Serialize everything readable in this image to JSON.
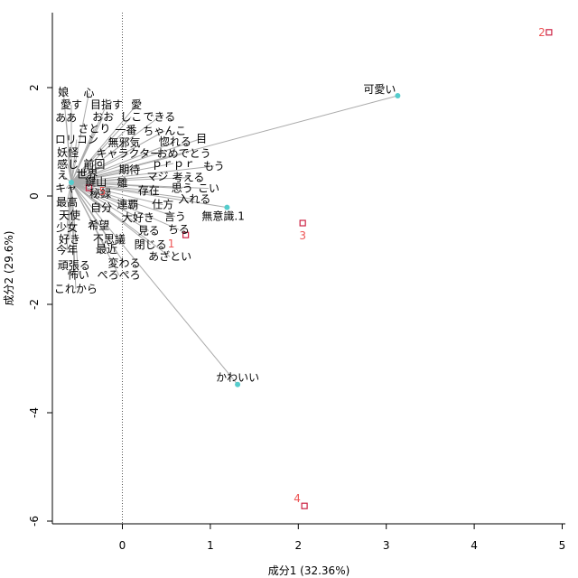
{
  "chart_data": {
    "type": "scatter",
    "xlabel": "成分1 (32.36%)",
    "ylabel": "成分2 (29.6%)",
    "xlim": [
      -0.8,
      5.0
    ],
    "ylim": [
      -6.1,
      3.2
    ],
    "xticks": [
      "0",
      "1",
      "2",
      "3",
      "4",
      "5"
    ],
    "yticks": [
      "2",
      "0",
      "-2",
      "-4",
      "-6"
    ],
    "colors": {
      "words": "#55CCCC",
      "docs": "#CC2244",
      "doc_label": "#EE5555",
      "lines": "#AAAAAA",
      "refline": "#555555"
    },
    "docs": [
      {
        "label": "1",
        "x": 0.72,
        "y": -0.72
      },
      {
        "label": "2",
        "x": 4.85,
        "y": 3.02
      },
      {
        "label": "3",
        "x": 2.05,
        "y": -0.5
      },
      {
        "label": "4",
        "x": 2.07,
        "y": -5.72
      },
      {
        "label": "5",
        "x": -0.38,
        "y": 0.15
      }
    ],
    "highlight_words": [
      {
        "label": "可愛い",
        "x": 3.13,
        "y": 1.85
      },
      {
        "label": "かわいい",
        "x": 1.31,
        "y": -3.48
      },
      {
        "label": "無意識.1",
        "x": 1.19,
        "y": -0.21
      }
    ],
    "words": [
      {
        "label": "娘",
        "x": -0.67,
        "y": 1.92
      },
      {
        "label": "心",
        "x": -0.38,
        "y": 1.9
      },
      {
        "label": "愛す",
        "x": -0.58,
        "y": 1.68
      },
      {
        "label": "目指す",
        "x": -0.18,
        "y": 1.68
      },
      {
        "label": "愛",
        "x": 0.16,
        "y": 1.68
      },
      {
        "label": "ああ",
        "x": -0.64,
        "y": 1.44
      },
      {
        "label": "おお",
        "x": -0.22,
        "y": 1.46
      },
      {
        "label": "しこ",
        "x": 0.1,
        "y": 1.46
      },
      {
        "label": "できる",
        "x": 0.42,
        "y": 1.46
      },
      {
        "label": "さとり",
        "x": -0.32,
        "y": 1.24
      },
      {
        "label": "一番",
        "x": 0.04,
        "y": 1.22
      },
      {
        "label": "ちゃんこ",
        "x": 0.48,
        "y": 1.2
      },
      {
        "label": "ロリコン",
        "x": -0.52,
        "y": 1.04
      },
      {
        "label": "無邪気",
        "x": 0.02,
        "y": 0.98
      },
      {
        "label": "惚れる",
        "x": 0.6,
        "y": 1.0
      },
      {
        "label": "目",
        "x": 0.9,
        "y": 1.06
      },
      {
        "label": "妖怪",
        "x": -0.62,
        "y": 0.8
      },
      {
        "label": "キャラクター",
        "x": 0.07,
        "y": 0.78
      },
      {
        "label": "おめでとう",
        "x": 0.7,
        "y": 0.78
      },
      {
        "label": "感じ",
        "x": -0.62,
        "y": 0.58
      },
      {
        "label": "前回",
        "x": -0.32,
        "y": 0.58
      },
      {
        "label": "ｐｒｐｒ",
        "x": 0.58,
        "y": 0.6
      },
      {
        "label": "もう",
        "x": 1.04,
        "y": 0.55
      },
      {
        "label": "え",
        "x": -0.68,
        "y": 0.38
      },
      {
        "label": "世界",
        "x": -0.4,
        "y": 0.4
      },
      {
        "label": "期待",
        "x": 0.08,
        "y": 0.48
      },
      {
        "label": "マジ",
        "x": 0.4,
        "y": 0.36
      },
      {
        "label": "考える",
        "x": 0.75,
        "y": 0.34
      },
      {
        "label": "鍵山",
        "x": -0.3,
        "y": 0.26
      },
      {
        "label": "雛",
        "x": 0.0,
        "y": 0.24
      },
      {
        "label": "キャ",
        "x": -0.64,
        "y": 0.14
      },
      {
        "label": "秘録",
        "x": -0.25,
        "y": 0.04
      },
      {
        "label": "存在",
        "x": 0.3,
        "y": 0.1
      },
      {
        "label": "思う",
        "x": 0.68,
        "y": 0.14
      },
      {
        "label": "こい",
        "x": 0.98,
        "y": 0.14
      },
      {
        "label": "最高",
        "x": -0.63,
        "y": -0.12
      },
      {
        "label": "自分",
        "x": -0.24,
        "y": -0.22
      },
      {
        "label": "連覇",
        "x": 0.06,
        "y": -0.16
      },
      {
        "label": "仕方",
        "x": 0.46,
        "y": -0.16
      },
      {
        "label": "入れる",
        "x": 0.82,
        "y": -0.06
      },
      {
        "label": "天使",
        "x": -0.6,
        "y": -0.36
      },
      {
        "label": "大好き",
        "x": 0.18,
        "y": -0.4
      },
      {
        "label": "言う",
        "x": 0.6,
        "y": -0.38
      },
      {
        "label": "少女",
        "x": -0.63,
        "y": -0.58
      },
      {
        "label": "希望",
        "x": -0.27,
        "y": -0.54
      },
      {
        "label": "見る",
        "x": 0.3,
        "y": -0.64
      },
      {
        "label": "ちる",
        "x": 0.64,
        "y": -0.62
      },
      {
        "label": "好き",
        "x": -0.6,
        "y": -0.8
      },
      {
        "label": "不思議",
        "x": -0.15,
        "y": -0.8
      },
      {
        "label": "閉じる",
        "x": 0.32,
        "y": -0.9
      },
      {
        "label": "今年",
        "x": -0.63,
        "y": -1.0
      },
      {
        "label": "最近",
        "x": -0.18,
        "y": -0.98
      },
      {
        "label": "あざとい",
        "x": 0.54,
        "y": -1.12
      },
      {
        "label": "頑張る",
        "x": -0.55,
        "y": -1.28
      },
      {
        "label": "変わる",
        "x": 0.02,
        "y": -1.24
      },
      {
        "label": "怖い",
        "x": -0.5,
        "y": -1.46
      },
      {
        "label": "ぺろぺろ",
        "x": -0.04,
        "y": -1.46
      },
      {
        "label": "これから",
        "x": -0.53,
        "y": -1.72
      }
    ]
  }
}
